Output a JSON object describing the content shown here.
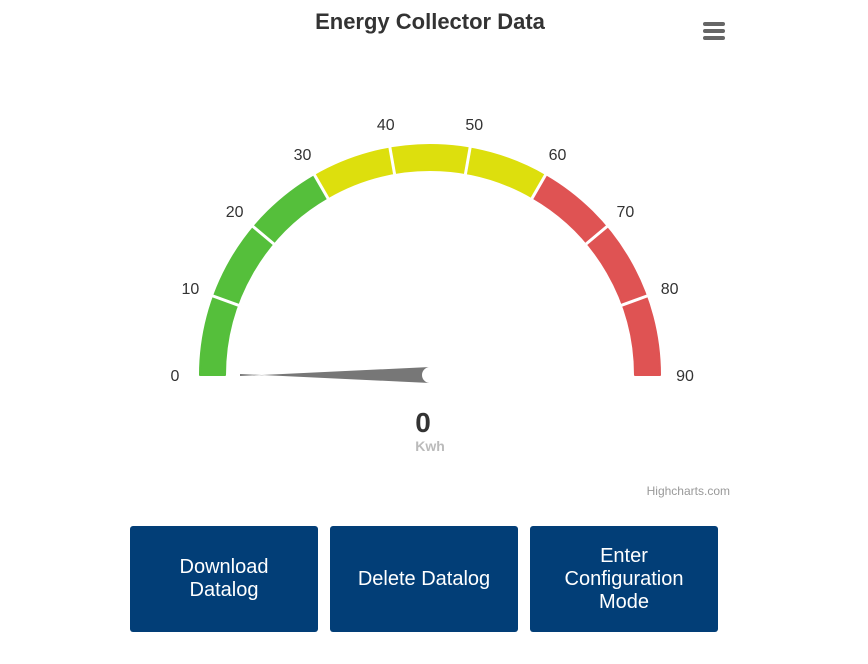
{
  "header": {
    "title": "Energy Collector Data",
    "menu_icon": "hamburger-menu-icon"
  },
  "chart_data": {
    "type": "gauge",
    "title": "Energy Collector Data",
    "min": 0,
    "max": 90,
    "tick_interval": 10,
    "tick_labels": [
      "0",
      "10",
      "20",
      "30",
      "40",
      "50",
      "60",
      "70",
      "80",
      "90"
    ],
    "bands": [
      {
        "from": 0,
        "to": 30,
        "color": "#55BF3B"
      },
      {
        "from": 30,
        "to": 60,
        "color": "#DDDF0D"
      },
      {
        "from": 60,
        "to": 90,
        "color": "#DF5353"
      }
    ],
    "value": 0,
    "value_label": "0",
    "unit": "Kwh",
    "needle_color": "#777777"
  },
  "credits": "Highcharts.com",
  "buttons": {
    "download": "Download\nDatalog",
    "delete": "Delete Datalog",
    "config": "Enter\nConfiguration\nMode"
  }
}
